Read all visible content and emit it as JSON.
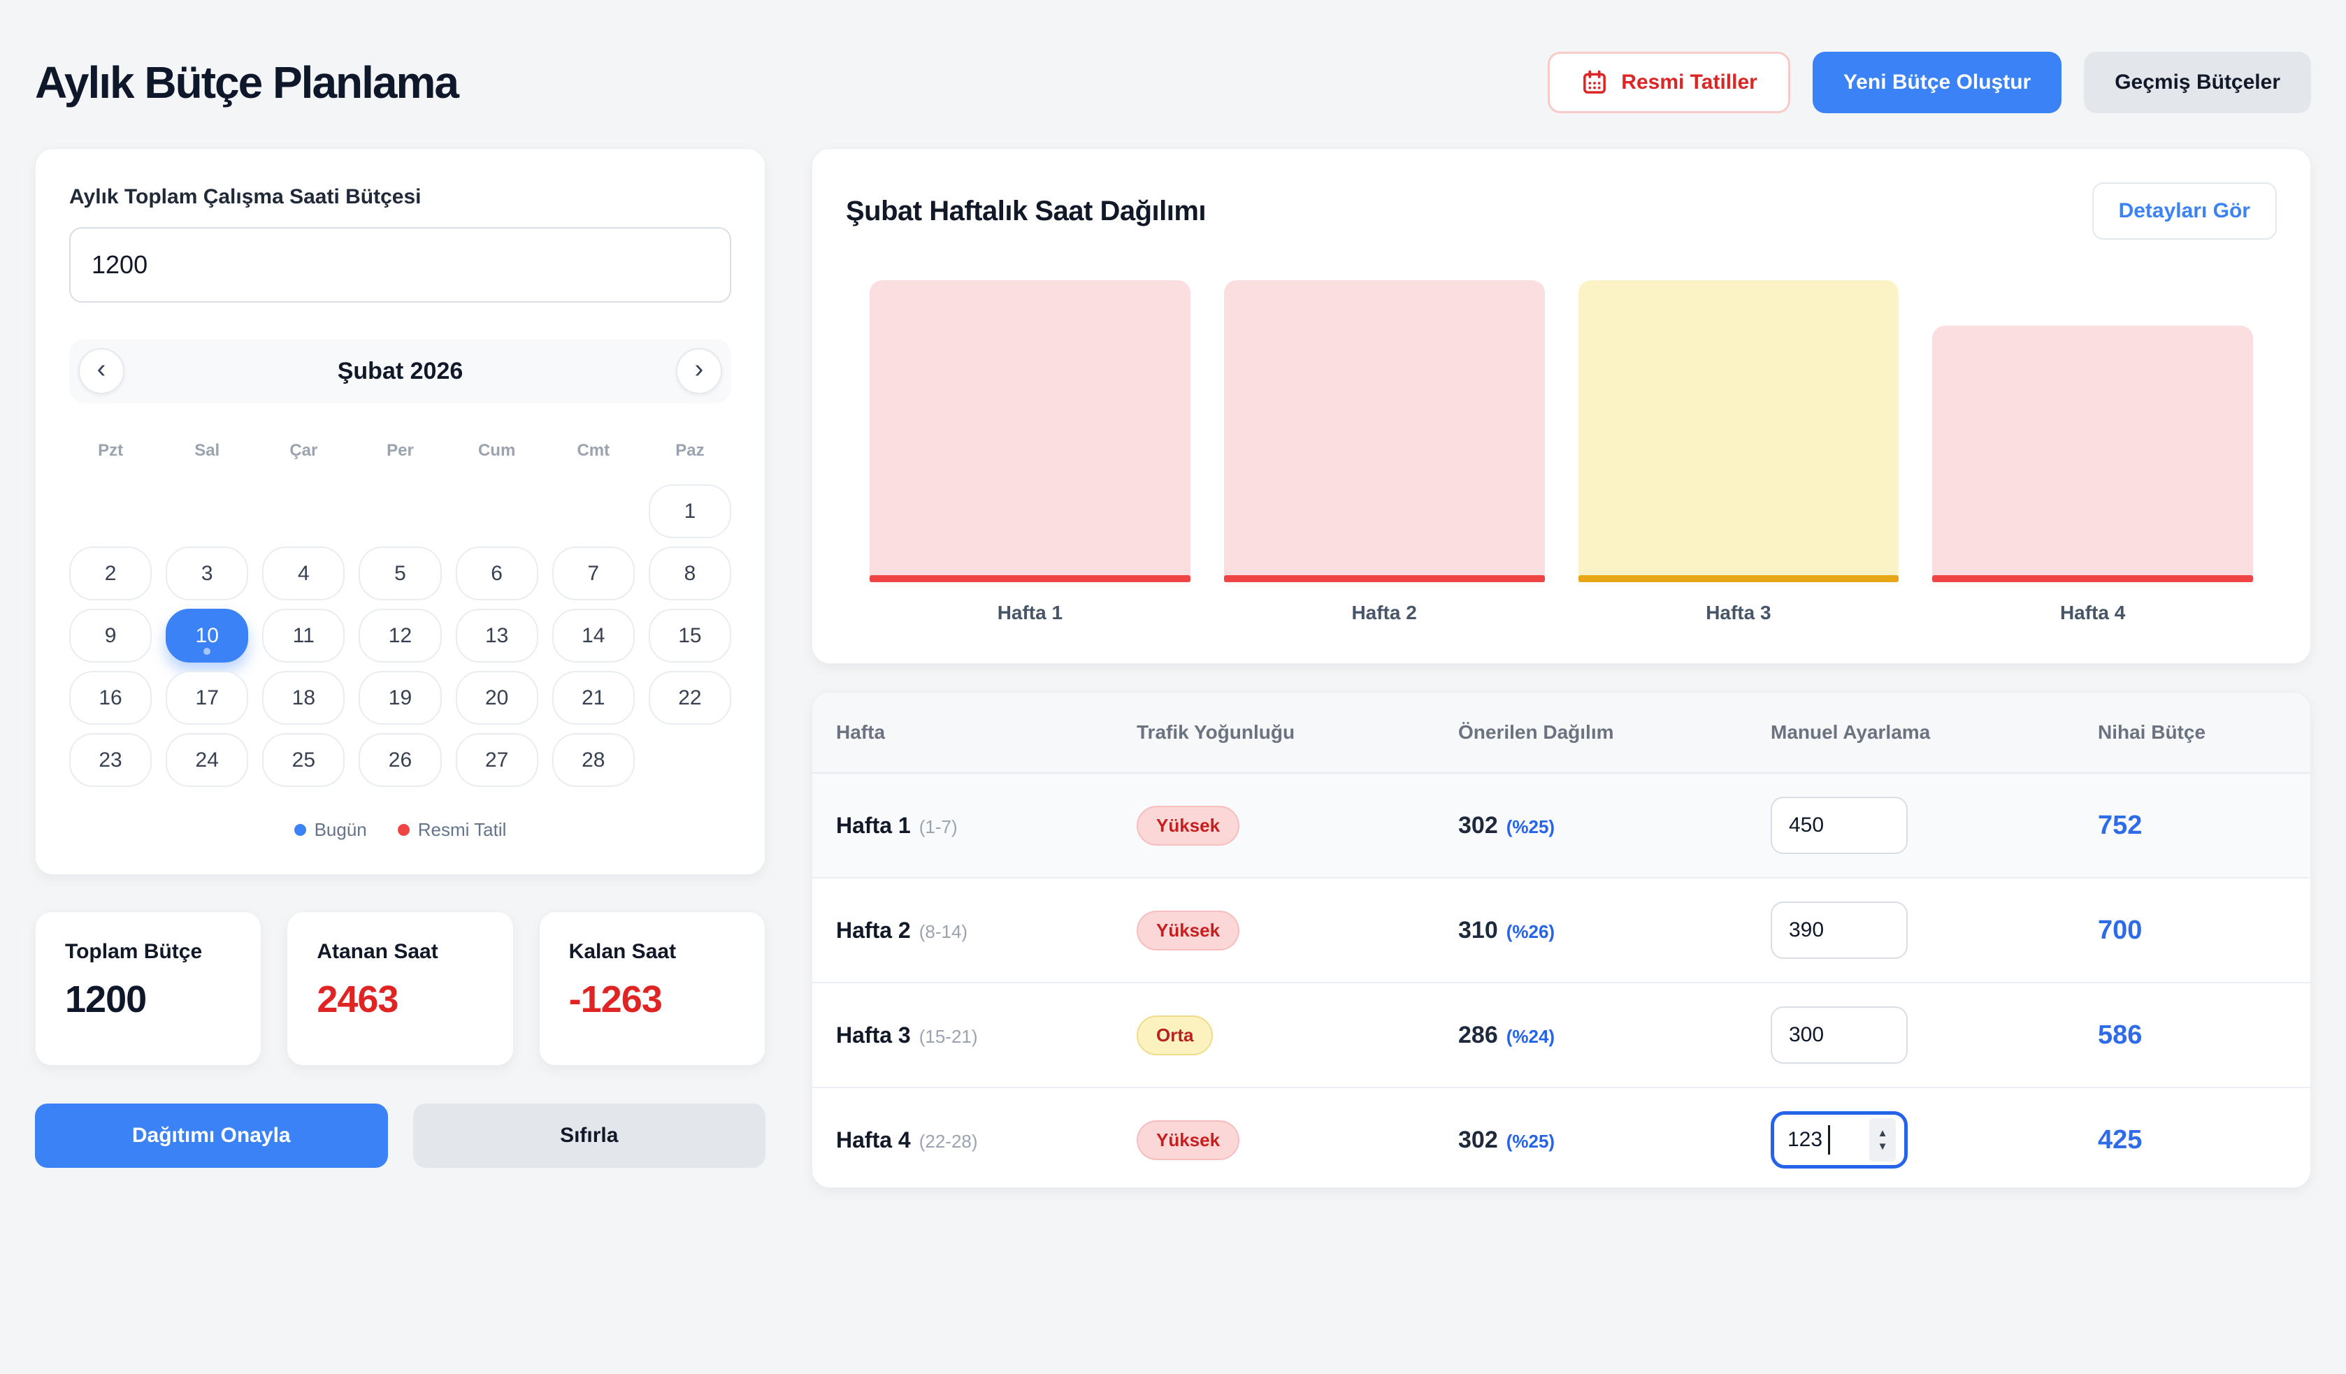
{
  "colors": {
    "accent_blue": "#3b82f6",
    "link_blue": "#2563eb",
    "danger_red": "#dc2626",
    "value_red": "#e02424",
    "bar_red_fill": "#fbdee0",
    "bar_red_base": "#f04343",
    "bar_yellow_fill": "#fbf3c5",
    "bar_yellow_base": "#e7a615",
    "page_bg": "#f4f5f7"
  },
  "header": {
    "title": "Aylık Bütçe Planlama",
    "buttons": {
      "holidays": "Resmi Tatiller",
      "new_budget": "Yeni Bütçe Oluştur",
      "past_budgets": "Geçmiş Bütçeler"
    }
  },
  "budget_panel": {
    "input_label": "Aylık Toplam Çalışma Saati Bütçesi",
    "input_value": "1200",
    "calendar": {
      "month_label": "Şubat 2026",
      "prev_glyph": "‹",
      "next_glyph": "›",
      "weekdays": [
        "Pzt",
        "Sal",
        "Çar",
        "Per",
        "Cum",
        "Cmt",
        "Paz"
      ],
      "day_count": 28,
      "first_day_column": 7,
      "selected_day": 10,
      "legend": [
        {
          "label": "Bugün",
          "color": "#3b82f6"
        },
        {
          "label": "Resmi Tatil",
          "color": "#ef4444"
        }
      ]
    }
  },
  "stats": [
    {
      "label": "Toplam Bütçe",
      "value": "1200",
      "color": "#0f172a"
    },
    {
      "label": "Atanan Saat",
      "value": "2463",
      "color": "#e02424"
    },
    {
      "label": "Kalan Saat",
      "value": "-1263",
      "color": "#e02424"
    }
  ],
  "actions": {
    "approve": "Dağıtımı Onayla",
    "reset": "Sıfırla"
  },
  "chart_card": {
    "title": "Şubat Haftalık Saat Dağılımı",
    "details_button": "Detayları Gör"
  },
  "chart_data": {
    "type": "bar",
    "title": "Şubat Haftalık Saat Dağılımı",
    "categories": [
      "Hafta 1",
      "Hafta 2",
      "Hafta 3",
      "Hafta 4"
    ],
    "values_relative_pct": [
      100,
      100,
      100,
      85
    ],
    "traffic_levels": [
      "Yüksek",
      "Yüksek",
      "Orta",
      "Yüksek"
    ],
    "bars": [
      {
        "label": "Hafta 1",
        "height_pct": 100,
        "fill": "#fbdee0",
        "base": "#f04343"
      },
      {
        "label": "Hafta 2",
        "height_pct": 100,
        "fill": "#fbdee0",
        "base": "#f04343"
      },
      {
        "label": "Hafta 3",
        "height_pct": 100,
        "fill": "#fbf3c5",
        "base": "#e7a615"
      },
      {
        "label": "Hafta 4",
        "height_pct": 85,
        "fill": "#fbdee0",
        "base": "#f04343"
      }
    ],
    "xlabel": "",
    "ylabel": "",
    "axes_hidden": true,
    "legend_position": "none"
  },
  "table": {
    "columns": [
      "Hafta",
      "Trafik Yoğunluğu",
      "Önerilen Dağılım",
      "Manuel Ayarlama",
      "Nihai Bütçe"
    ],
    "rows": [
      {
        "week": "Hafta 1",
        "range": "(1-7)",
        "traffic": "Yüksek",
        "level": "high",
        "suggested": "302",
        "suggested_pct": "(%25)",
        "manual": "450",
        "final": "752",
        "focused": false,
        "highlighted": true
      },
      {
        "week": "Hafta 2",
        "range": "(8-14)",
        "traffic": "Yüksek",
        "level": "high",
        "suggested": "310",
        "suggested_pct": "(%26)",
        "manual": "390",
        "final": "700",
        "focused": false,
        "highlighted": false
      },
      {
        "week": "Hafta 3",
        "range": "(15-21)",
        "traffic": "Orta",
        "level": "medium",
        "suggested": "286",
        "suggested_pct": "(%24)",
        "manual": "300",
        "final": "586",
        "focused": false,
        "highlighted": false
      },
      {
        "week": "Hafta 4",
        "range": "(22-28)",
        "traffic": "Yüksek",
        "level": "high",
        "suggested": "302",
        "suggested_pct": "(%25)",
        "manual": "123",
        "final": "425",
        "focused": true,
        "highlighted": false
      }
    ],
    "spinner_up_glyph": "▲",
    "spinner_down_glyph": "▼"
  }
}
